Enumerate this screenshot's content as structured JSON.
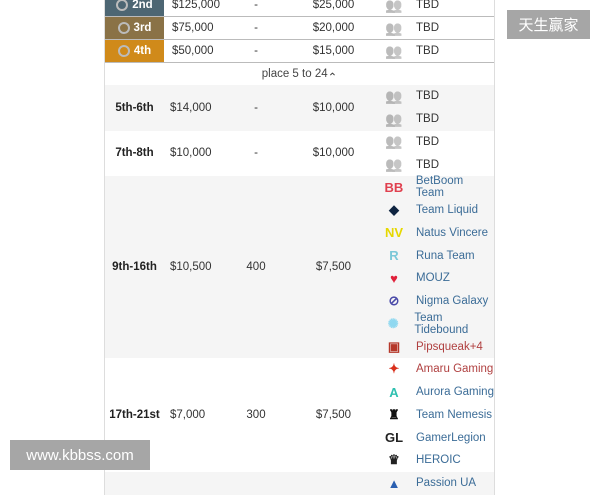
{
  "medal_rows": [
    {
      "place": "2nd",
      "prize": "$125,000",
      "points": "-",
      "qual": "$25,000",
      "team": "TBD",
      "color": "#4d6673"
    },
    {
      "place": "3rd",
      "prize": "$75,000",
      "points": "-",
      "qual": "$20,000",
      "team": "TBD",
      "color": "#8a7246"
    },
    {
      "place": "4th",
      "prize": "$50,000",
      "points": "-",
      "qual": "$15,000",
      "team": "TBD",
      "color": "#d08a1a"
    }
  ],
  "toggle_label": "place 5 to 24",
  "groups": [
    {
      "place": "5th-6th",
      "prize": "$14,000",
      "points": "-",
      "qual": "$10,000",
      "teams": [
        {
          "name": "TBD",
          "icon": "team-placeholder"
        },
        {
          "name": "TBD",
          "icon": "team-placeholder"
        }
      ]
    },
    {
      "place": "7th-8th",
      "prize": "$10,000",
      "points": "-",
      "qual": "$10,000",
      "teams": [
        {
          "name": "TBD",
          "icon": "team-placeholder"
        },
        {
          "name": "TBD",
          "icon": "team-placeholder"
        }
      ]
    },
    {
      "place": "9th-16th",
      "prize": "$10,500",
      "points": "400",
      "qual": "$7,500",
      "teams": [
        {
          "name": "BetBoom Team",
          "icon": "betboom-logo",
          "color": "#e0404f"
        },
        {
          "name": "Team Liquid",
          "icon": "liquid-logo",
          "color": "#0e2440"
        },
        {
          "name": "Natus Vincere",
          "icon": "navi-logo",
          "color": "#e6d800"
        },
        {
          "name": "Runa Team",
          "icon": "runa-logo",
          "color": "#7cc8d8"
        },
        {
          "name": "MOUZ",
          "icon": "mouz-logo",
          "color": "#e0203a"
        },
        {
          "name": "Nigma Galaxy",
          "icon": "nigma-logo",
          "color": "#4a4aa8"
        },
        {
          "name": "Team Tidebound",
          "icon": "tidebound-logo",
          "color": "#8fd8f0"
        },
        {
          "name": "Pipsqueak+4",
          "icon": "dota-logo",
          "color": "#b5382a",
          "red": true
        }
      ]
    },
    {
      "place": "17th-21st",
      "prize": "$7,000",
      "points": "300",
      "qual": "$7,500",
      "teams": [
        {
          "name": "Amaru Gaming",
          "icon": "amaru-logo",
          "color": "#d9301c",
          "red": true
        },
        {
          "name": "Aurora Gaming",
          "icon": "aurora-logo",
          "color": "#2fc0b0"
        },
        {
          "name": "Team Nemesis",
          "icon": "nemesis-logo",
          "color": "#111"
        },
        {
          "name": "GamerLegion",
          "icon": "gamerlegion-logo",
          "color": "#222"
        },
        {
          "name": "HEROIC",
          "icon": "heroic-logo",
          "color": "#222"
        }
      ]
    },
    {
      "place": "",
      "prize": "",
      "points": "",
      "qual": "",
      "teams": [
        {
          "name": "Passion UA",
          "icon": "passion-logo",
          "color": "#2a5fb0"
        }
      ]
    }
  ],
  "watermarks": {
    "top": "天生赢家",
    "bottom": "www.kbbss.com"
  }
}
